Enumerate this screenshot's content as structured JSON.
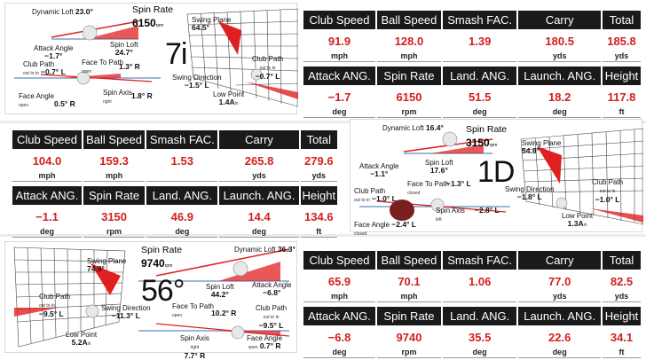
{
  "shots": [
    {
      "club": "7i",
      "spin_rate_label": "Spin Rate",
      "spin_rate_value": "6150",
      "spin_unit": "rpm",
      "dynamic_loft_label": "Dynamic Loft",
      "dynamic_loft_value": "23.0°",
      "attack_angle_label": "Attack Angle",
      "attack_angle_value": "−1.7°",
      "spin_loft_label": "Spin Loft",
      "spin_loft_value": "24.7°",
      "club_path_label": "Club Path",
      "club_path_dir": "out to in",
      "club_path_value": "−0.7° L",
      "face_to_path_label": "Face To Path",
      "face_to_path_dir": "open",
      "face_to_path_value": "1.3° R",
      "face_angle_label": "Face Angle",
      "face_angle_dir": "open",
      "face_angle_value": "0.5° R",
      "spin_axis_label": "Spin Axis",
      "spin_axis_dir": "right",
      "spin_axis_value": "1.8° R",
      "swing_plane_label": "Swing Plane",
      "swing_plane_value": "64.5°",
      "swing_direction_label": "Swing Direction",
      "swing_direction_value": "−1.5° L",
      "grid_club_path_label": "Club Path",
      "grid_club_path_dir": "out to in",
      "grid_club_path_value": "−0.7° L",
      "low_point_label": "Low Point",
      "low_point_value": "1.4A",
      "low_point_unit": "in",
      "stats": {
        "row1": [
          {
            "head": "Club Speed",
            "value": "91.9",
            "unit": "mph"
          },
          {
            "head": "Ball Speed",
            "value": "128.0",
            "unit": "mph"
          },
          {
            "head": "Smash FAC.",
            "value": "1.39",
            "unit": ""
          },
          {
            "head": "Carry",
            "value": "180.5",
            "unit": "yds"
          },
          {
            "head": "Total",
            "value": "185.8",
            "unit": "yds"
          }
        ],
        "row2": [
          {
            "head": "Attack ANG.",
            "value": "−1.7",
            "unit": "deg"
          },
          {
            "head": "Spin Rate",
            "value": "6150",
            "unit": "rpm"
          },
          {
            "head": "Land. ANG.",
            "value": "51.5",
            "unit": "deg"
          },
          {
            "head": "Launch. ANG.",
            "value": "18.2",
            "unit": "deg"
          },
          {
            "head": "Height",
            "value": "117.8",
            "unit": "ft"
          }
        ]
      }
    },
    {
      "club": "1D",
      "spin_rate_label": "Spin Rate",
      "spin_rate_value": "3150",
      "spin_unit": "rpm",
      "dynamic_loft_label": "Dynamic Loft",
      "dynamic_loft_value": "16.4°",
      "attack_angle_label": "Attack Angle",
      "attack_angle_value": "−1.1°",
      "spin_loft_label": "Spin Loft",
      "spin_loft_value": "17.6°",
      "club_path_label": "Club Path",
      "club_path_dir": "out to in",
      "club_path_value": "−1.0° L",
      "face_to_path_label": "Face To Path",
      "face_to_path_dir": "closed",
      "face_to_path_value": "−1.3° L",
      "face_angle_label": "Face Angle",
      "face_angle_dir": "closed",
      "face_angle_value": "−2.4° L",
      "spin_axis_label": "Spin Axis",
      "spin_axis_dir": "left",
      "spin_axis_value": "−2.8° L",
      "swing_plane_label": "Swing Plane",
      "swing_plane_value": "54.8°",
      "swing_direction_label": "Swing Direction",
      "swing_direction_value": "−1.8° L",
      "grid_club_path_label": "Club Path",
      "grid_club_path_dir": "out to in",
      "grid_club_path_value": "−1.0° L",
      "low_point_label": "Low Point",
      "low_point_value": "1.3A",
      "low_point_unit": "in",
      "stats": {
        "row1": [
          {
            "head": "Club Speed",
            "value": "104.0",
            "unit": "mph"
          },
          {
            "head": "Ball Speed",
            "value": "159.3",
            "unit": "mph"
          },
          {
            "head": "Smash FAC.",
            "value": "1.53",
            "unit": ""
          },
          {
            "head": "Carry",
            "value": "265.8",
            "unit": "yds"
          },
          {
            "head": "Total",
            "value": "279.6",
            "unit": "yds"
          }
        ],
        "row2": [
          {
            "head": "Attack ANG.",
            "value": "−1.1",
            "unit": "deg"
          },
          {
            "head": "Spin Rate",
            "value": "3150",
            "unit": "rpm"
          },
          {
            "head": "Land. ANG.",
            "value": "46.9",
            "unit": "deg"
          },
          {
            "head": "Launch. ANG.",
            "value": "14.4",
            "unit": "deg"
          },
          {
            "head": "Height",
            "value": "134.6",
            "unit": "ft"
          }
        ]
      }
    },
    {
      "club": "56°",
      "spin_rate_label": "Spin Rate",
      "spin_rate_value": "9740",
      "spin_unit": "rpm",
      "dynamic_loft_label": "Dynamic Loft",
      "dynamic_loft_value": "36.3°",
      "attack_angle_label": "Attack Angle",
      "attack_angle_value": "−6.8°",
      "spin_loft_label": "Spin Loft",
      "spin_loft_value": "44.2°",
      "club_path_label": "Club Path",
      "club_path_dir": "out to in",
      "club_path_value": "−9.5° L",
      "face_to_path_label": "Face To Path",
      "face_to_path_dir": "open",
      "face_to_path_value": "10.2° R",
      "face_angle_label": "Face Angle",
      "face_angle_dir": "open",
      "face_angle_value": "0.7° R",
      "spin_axis_label": "Spin Axis",
      "spin_axis_dir": "right",
      "spin_axis_value": "7.7° R",
      "swing_plane_label": "Swing Plane",
      "swing_plane_value": "74.9°",
      "swing_direction_label": "Swing Direction",
      "swing_direction_value": "−11.3° L",
      "grid_club_path_label": "Club Path",
      "grid_club_path_dir": "out to in",
      "grid_club_path_value": "−9.5° L",
      "low_point_label": "Low Point",
      "low_point_value": "5.2A",
      "low_point_unit": "in",
      "stats": {
        "row1": [
          {
            "head": "Club Speed",
            "value": "65.9",
            "unit": "mph"
          },
          {
            "head": "Ball Speed",
            "value": "70.1",
            "unit": "mph"
          },
          {
            "head": "Smash FAC.",
            "value": "1.06",
            "unit": ""
          },
          {
            "head": "Carry",
            "value": "77.0",
            "unit": "yds"
          },
          {
            "head": "Total",
            "value": "82.5",
            "unit": "yds"
          }
        ],
        "row2": [
          {
            "head": "Attack ANG.",
            "value": "−6.8",
            "unit": "deg"
          },
          {
            "head": "Spin Rate",
            "value": "9740",
            "unit": "rpm"
          },
          {
            "head": "Land. ANG.",
            "value": "35.5",
            "unit": "deg"
          },
          {
            "head": "Launch. ANG.",
            "value": "22.6",
            "unit": "deg"
          },
          {
            "head": "Height",
            "value": "34.1",
            "unit": "ft"
          }
        ]
      }
    }
  ],
  "colors": {
    "value_red": "#d21f1f",
    "header_black": "#1a1a1a",
    "graphic_red": "#e02020"
  }
}
